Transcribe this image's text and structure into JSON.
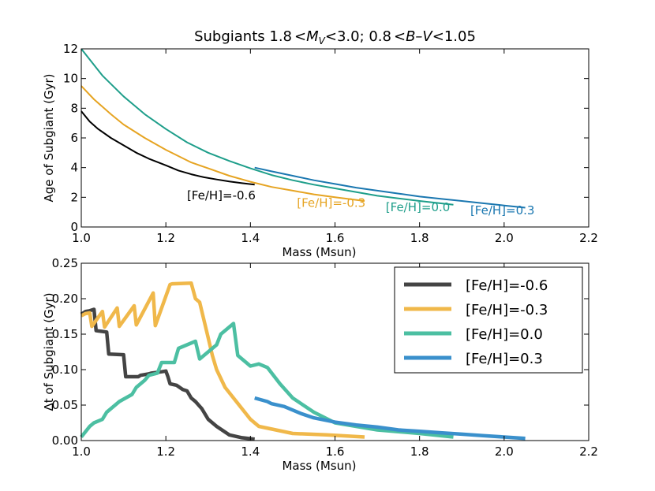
{
  "chart_data": [
    {
      "type": "line",
      "title_parts": [
        "Subgiants 1.8",
        "<",
        "M",
        "V",
        "<",
        "3.0; 0.8",
        "<",
        "B–V",
        "<",
        "1.05"
      ],
      "xlabel": "Mass (Msun)",
      "ylabel": "Age of Subgiant (Gyr)",
      "xlim": [
        1.0,
        2.2
      ],
      "ylim": [
        0,
        12
      ],
      "xticks": [
        "1.0",
        "1.2",
        "1.4",
        "1.6",
        "1.8",
        "2.0",
        "2.2"
      ],
      "yticks": [
        "0",
        "2",
        "4",
        "6",
        "8",
        "10",
        "12"
      ],
      "series": [
        {
          "name": "[Fe/H]=-0.6",
          "color": "#000000",
          "label": "[Fe/H]=-0.6",
          "label_at": [
            1.25,
            1.85
          ],
          "x": [
            1.0,
            1.02,
            1.04,
            1.07,
            1.1,
            1.13,
            1.16,
            1.2,
            1.23,
            1.26,
            1.29,
            1.32,
            1.35,
            1.38,
            1.41
          ],
          "y": [
            7.8,
            7.1,
            6.6,
            6.0,
            5.5,
            5.0,
            4.6,
            4.15,
            3.8,
            3.55,
            3.35,
            3.2,
            3.07,
            2.95,
            2.85
          ]
        },
        {
          "name": "[Fe/H]=-0.3",
          "color": "#e6a422",
          "label": "[Fe/H]=-0.3",
          "label_at": [
            1.51,
            1.35
          ],
          "x": [
            1.0,
            1.03,
            1.07,
            1.1,
            1.15,
            1.2,
            1.26,
            1.3,
            1.35,
            1.4,
            1.45,
            1.5,
            1.55,
            1.6,
            1.67
          ],
          "y": [
            9.5,
            8.6,
            7.6,
            6.9,
            6.0,
            5.2,
            4.35,
            3.95,
            3.45,
            3.05,
            2.7,
            2.45,
            2.2,
            2.0,
            1.75
          ]
        },
        {
          "name": "[Fe/H]=0.0",
          "color": "#1e9e8a",
          "label": "[Fe/H]=0.0",
          "label_at": [
            1.72,
            1.05
          ],
          "x": [
            1.0,
            1.05,
            1.1,
            1.15,
            1.2,
            1.25,
            1.3,
            1.35,
            1.4,
            1.45,
            1.5,
            1.55,
            1.6,
            1.7,
            1.8,
            1.88
          ],
          "y": [
            12.0,
            10.2,
            8.8,
            7.6,
            6.6,
            5.7,
            5.0,
            4.45,
            3.95,
            3.5,
            3.15,
            2.85,
            2.6,
            2.1,
            1.75,
            1.5
          ]
        },
        {
          "name": "[Fe/H]=0.3",
          "color": "#1a77b0",
          "label": "[Fe/H]=0.3",
          "label_at": [
            1.92,
            0.85
          ],
          "x": [
            1.41,
            1.45,
            1.5,
            1.55,
            1.6,
            1.65,
            1.7,
            1.75,
            1.8,
            1.85,
            1.9,
            1.95,
            2.0,
            2.05
          ],
          "y": [
            4.0,
            3.75,
            3.45,
            3.15,
            2.9,
            2.65,
            2.45,
            2.25,
            2.05,
            1.9,
            1.75,
            1.6,
            1.45,
            1.3
          ]
        }
      ]
    },
    {
      "type": "line",
      "xlabel": "Mass (Msun)",
      "ylabel": "Δt of Subgiant (Gyr)",
      "xlim": [
        1.0,
        2.2
      ],
      "ylim": [
        0,
        0.25
      ],
      "xticks": [
        "1.0",
        "1.2",
        "1.4",
        "1.6",
        "1.8",
        "2.0",
        "2.2"
      ],
      "yticks": [
        "0.00",
        "0.05",
        "0.10",
        "0.15",
        "0.20",
        "0.25"
      ],
      "legend": "top-right",
      "series": [
        {
          "name": "[Fe/H]=-0.6",
          "color": "#444444",
          "x": [
            1.0,
            1.01,
            1.02,
            1.03,
            1.035,
            1.06,
            1.065,
            1.1,
            1.105,
            1.135,
            1.14,
            1.16,
            1.165,
            1.19,
            1.2,
            1.205,
            1.21,
            1.225,
            1.24,
            1.25,
            1.26,
            1.27,
            1.285,
            1.3,
            1.32,
            1.35,
            1.38,
            1.41
          ],
          "y": [
            0.178,
            0.182,
            0.183,
            0.185,
            0.155,
            0.153,
            0.122,
            0.121,
            0.09,
            0.09,
            0.092,
            0.094,
            0.095,
            0.097,
            0.098,
            0.09,
            0.08,
            0.078,
            0.072,
            0.07,
            0.06,
            0.055,
            0.045,
            0.03,
            0.02,
            0.008,
            0.004,
            0.002
          ]
        },
        {
          "name": "[Fe/H]=-0.3",
          "color": "#f0b84a",
          "x": [
            1.0,
            1.01,
            1.02,
            1.025,
            1.05,
            1.055,
            1.085,
            1.09,
            1.125,
            1.13,
            1.17,
            1.175,
            1.21,
            1.215,
            1.26,
            1.27,
            1.28,
            1.29,
            1.3,
            1.31,
            1.32,
            1.34,
            1.36,
            1.38,
            1.4,
            1.42,
            1.46,
            1.5,
            1.58,
            1.67
          ],
          "y": [
            0.176,
            0.179,
            0.18,
            0.161,
            0.182,
            0.16,
            0.187,
            0.161,
            0.19,
            0.163,
            0.208,
            0.162,
            0.22,
            0.221,
            0.222,
            0.2,
            0.195,
            0.17,
            0.145,
            0.12,
            0.1,
            0.075,
            0.06,
            0.045,
            0.03,
            0.02,
            0.015,
            0.01,
            0.008,
            0.005
          ]
        },
        {
          "name": "[Fe/H]=0.0",
          "color": "#4cbfa2",
          "x": [
            1.0,
            1.02,
            1.03,
            1.05,
            1.06,
            1.08,
            1.09,
            1.12,
            1.13,
            1.15,
            1.16,
            1.18,
            1.19,
            1.22,
            1.23,
            1.27,
            1.28,
            1.32,
            1.33,
            1.36,
            1.37,
            1.39,
            1.4,
            1.42,
            1.44,
            1.47,
            1.5,
            1.55,
            1.6,
            1.7,
            1.8,
            1.88
          ],
          "y": [
            0.005,
            0.02,
            0.025,
            0.03,
            0.04,
            0.05,
            0.055,
            0.065,
            0.075,
            0.085,
            0.092,
            0.095,
            0.11,
            0.11,
            0.13,
            0.14,
            0.115,
            0.135,
            0.15,
            0.165,
            0.12,
            0.11,
            0.105,
            0.108,
            0.103,
            0.08,
            0.06,
            0.04,
            0.025,
            0.015,
            0.01,
            0.005
          ]
        },
        {
          "name": "[Fe/H]=0.3",
          "color": "#3a90cc",
          "x": [
            1.41,
            1.44,
            1.45,
            1.48,
            1.5,
            1.52,
            1.55,
            1.6,
            1.65,
            1.7,
            1.75,
            1.8,
            1.85,
            1.9,
            1.95,
            2.0,
            2.05
          ],
          "y": [
            0.06,
            0.055,
            0.052,
            0.048,
            0.043,
            0.038,
            0.032,
            0.026,
            0.022,
            0.019,
            0.015,
            0.013,
            0.011,
            0.009,
            0.007,
            0.005,
            0.003
          ]
        }
      ]
    }
  ]
}
